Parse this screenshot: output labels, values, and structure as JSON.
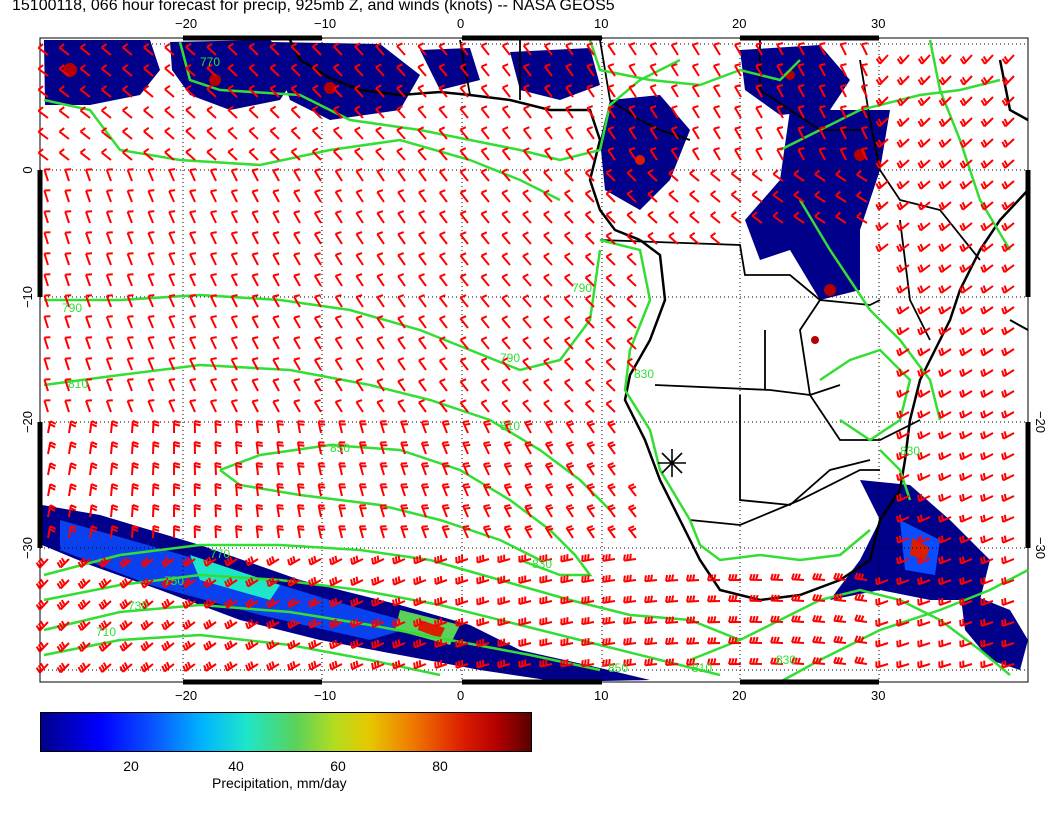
{
  "title": "15100118, 066 hour forecast for precip, 925mb Z, and winds (knots) -- NASA GEOS5",
  "axes": {
    "lon_ticks": [
      "−20",
      "−10",
      "0",
      "10",
      "20",
      "30"
    ],
    "lat_ticks": [
      "0",
      "−10",
      "−20",
      "−30"
    ],
    "lon_range": [
      -30,
      40
    ],
    "lat_range": [
      -39,
      9
    ]
  },
  "contours": {
    "color": "#33dd33",
    "labels": [
      "770",
      "790",
      "810",
      "830",
      "850",
      "790",
      "810",
      "750",
      "730",
      "710",
      "830",
      "770",
      "790",
      "810",
      "830",
      "850",
      "830"
    ]
  },
  "colorbar": {
    "label": "Precipitation, mm/day",
    "ticks": [
      "20",
      "40",
      "60",
      "80"
    ],
    "range": [
      0,
      100
    ]
  },
  "colors": {
    "wind_barb": "#ff0000",
    "contour": "#33dd33",
    "coastline": "#000000",
    "precip_low": "#00008a",
    "precip_high": "#8b0000"
  },
  "icons": {
    "site_marker": "star-marker-icon"
  }
}
